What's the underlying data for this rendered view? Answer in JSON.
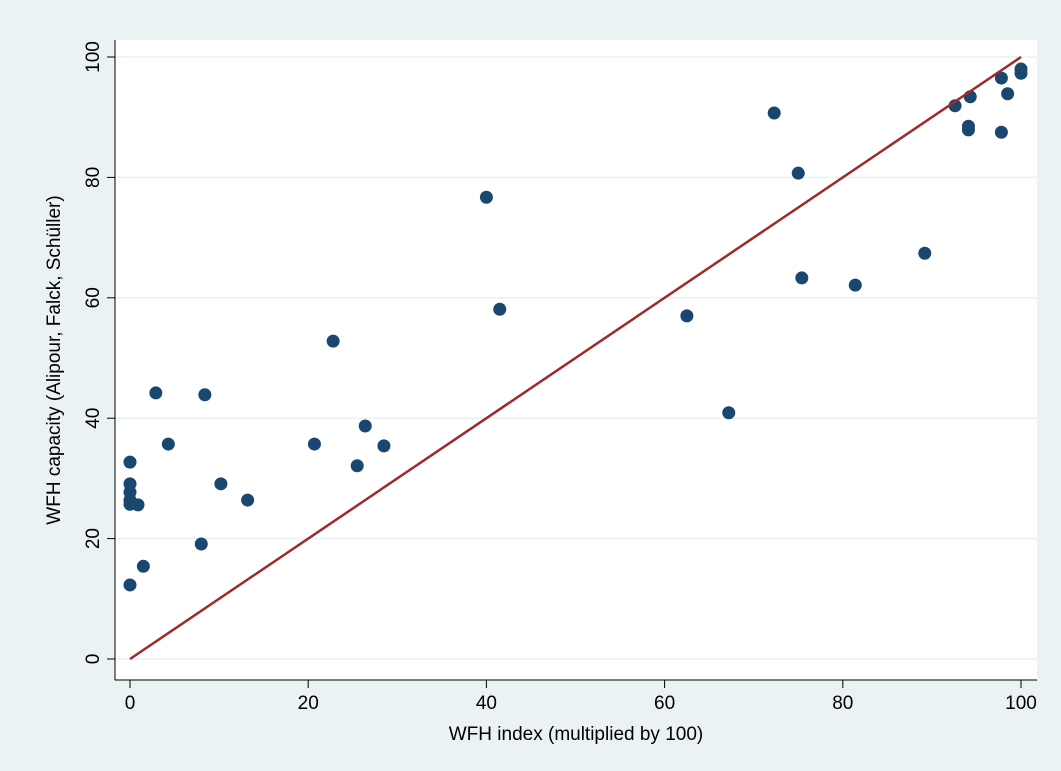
{
  "chart_data": {
    "type": "scatter",
    "xlabel": "WFH index (multiplied by 100)",
    "ylabel": "WFH capacity (Alipour, Falck, Schüller)",
    "xlim": [
      0,
      100
    ],
    "ylim": [
      0,
      100
    ],
    "xticks": [
      0,
      20,
      40,
      60,
      80,
      100
    ],
    "yticks": [
      0,
      20,
      40,
      60,
      80,
      100
    ],
    "grid": true,
    "color": "#1a476f",
    "x": [
      0,
      1.5,
      0,
      0.9,
      0,
      0,
      0,
      0,
      2.9,
      4.3,
      8.0,
      8.4,
      10.2,
      13.2,
      20.7,
      22.8,
      25.5,
      26.4,
      28.5,
      40.0,
      41.5,
      62.5,
      67.2,
      72.3,
      75.0,
      75.4,
      81.4,
      89.2,
      92.6,
      94.1,
      94.1,
      94.3,
      97.8,
      97.8,
      98.5,
      100,
      100
    ],
    "values": [
      12.3,
      15.4,
      25.7,
      25.6,
      26.4,
      29.1,
      27.7,
      32.7,
      44.2,
      35.7,
      19.1,
      43.9,
      29.1,
      26.4,
      35.7,
      52.8,
      32.1,
      38.7,
      35.4,
      76.7,
      58.1,
      57.0,
      40.9,
      90.7,
      80.7,
      63.3,
      62.1,
      67.4,
      91.9,
      88.5,
      87.9,
      93.4,
      87.5,
      96.5,
      93.9,
      98.0,
      97.3
    ],
    "line": {
      "x": [
        0,
        100
      ],
      "y": [
        0,
        100
      ],
      "color": "#9e2a2b"
    }
  }
}
